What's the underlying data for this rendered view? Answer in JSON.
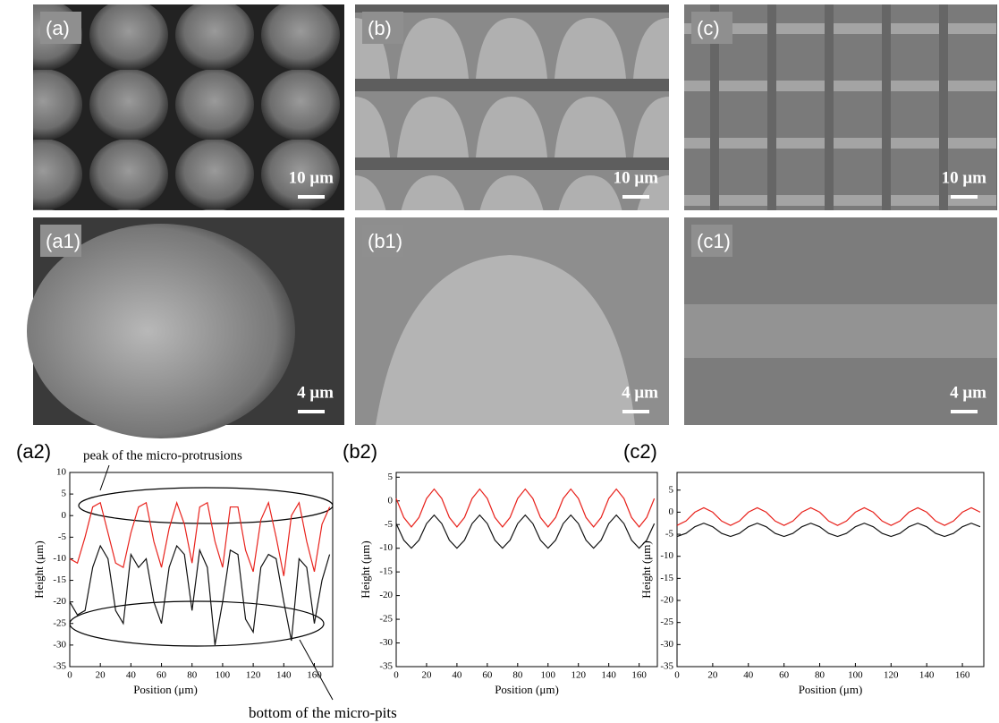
{
  "panels": [
    {
      "label": "(a)",
      "scale": "10 μm"
    },
    {
      "label": "(b)",
      "scale": "10 μm"
    },
    {
      "label": "(c)",
      "scale": "10 μm"
    },
    {
      "label": "(a1)",
      "scale": "4 μm"
    },
    {
      "label": "(b1)",
      "scale": "4 μm"
    },
    {
      "label": "(c1)",
      "scale": "4 μm"
    }
  ],
  "chart_data": [
    {
      "type": "line",
      "label": "(a2)",
      "xlabel": "Position (μm)",
      "ylabel": "Height (μm)",
      "annotations": [
        "peak of the micro-protrusions",
        "bottom of the micro-pits"
      ],
      "xlim": [
        0,
        172
      ],
      "xticks": [
        0,
        20,
        40,
        60,
        80,
        100,
        120,
        140,
        160
      ],
      "ylim": [
        -35,
        10
      ],
      "yticks": [
        -35,
        -30,
        -25,
        -20,
        -15,
        -10,
        -5,
        0,
        5,
        10
      ],
      "x": [
        0,
        5,
        10,
        15,
        20,
        25,
        30,
        35,
        40,
        45,
        50,
        55,
        60,
        65,
        70,
        75,
        80,
        85,
        90,
        95,
        100,
        105,
        110,
        115,
        120,
        125,
        130,
        135,
        140,
        145,
        150,
        155,
        160,
        165,
        170
      ],
      "series": [
        {
          "color": "#e8221c",
          "values": [
            -10,
            -11,
            -5,
            2,
            3,
            -4,
            -11,
            -12,
            -4,
            2,
            3,
            -6,
            -12,
            -3,
            3,
            -2,
            -11,
            2,
            3,
            -6,
            -12,
            2,
            2,
            -8,
            -13,
            -1,
            3,
            -5,
            -14,
            0,
            3,
            -6,
            -13,
            -2,
            2
          ]
        },
        {
          "color": "#111111",
          "values": [
            -20,
            -23,
            -22,
            -12,
            -7,
            -10,
            -22,
            -25,
            -9,
            -12,
            -10,
            -20,
            -25,
            -12,
            -7,
            -9,
            -22,
            -8,
            -12,
            -30,
            -20,
            -8,
            -9,
            -24,
            -27,
            -12,
            -9,
            -10,
            -20,
            -29,
            -10,
            -12,
            -25,
            -15,
            -9
          ]
        }
      ]
    },
    {
      "type": "line",
      "label": "(b2)",
      "xlabel": "Position (μm)",
      "ylabel": "Height (μm)",
      "xlim": [
        0,
        172
      ],
      "xticks": [
        0,
        20,
        40,
        60,
        80,
        100,
        120,
        140,
        160
      ],
      "ylim": [
        -35,
        6
      ],
      "yticks": [
        -35,
        -30,
        -25,
        -20,
        -15,
        -10,
        -5,
        0,
        5
      ],
      "x": [
        0,
        5,
        10,
        15,
        20,
        25,
        30,
        35,
        40,
        45,
        50,
        55,
        60,
        65,
        70,
        75,
        80,
        85,
        90,
        95,
        100,
        105,
        110,
        115,
        120,
        125,
        130,
        135,
        140,
        145,
        150,
        155,
        160,
        165,
        170
      ],
      "series": [
        {
          "color": "#e8221c",
          "values": [
            0.5,
            -3.5,
            -5.5,
            -3.5,
            0.5,
            2.5,
            0.5,
            -3.5,
            -5.5,
            -3.5,
            0.5,
            2.5,
            0.5,
            -3.5,
            -5.5,
            -3.5,
            0.5,
            2.5,
            0.5,
            -3.5,
            -5.5,
            -3.5,
            0.5,
            2.5,
            0.5,
            -3.5,
            -5.5,
            -3.5,
            0.5,
            2.5,
            0.5,
            -3.5,
            -5.5,
            -3.5,
            0.5
          ]
        },
        {
          "color": "#111111",
          "values": [
            -4.8,
            -8.3,
            -10,
            -8.3,
            -4.8,
            -3,
            -4.8,
            -8.3,
            -10,
            -8.3,
            -4.8,
            -3,
            -4.8,
            -8.3,
            -10,
            -8.3,
            -4.8,
            -3,
            -4.8,
            -8.3,
            -10,
            -8.3,
            -4.8,
            -3,
            -4.8,
            -8.3,
            -10,
            -8.3,
            -4.8,
            -3,
            -4.8,
            -8.3,
            -10,
            -8.3,
            -4.8
          ]
        }
      ]
    },
    {
      "type": "line",
      "label": "(c2)",
      "xlabel": "Position (μm)",
      "ylabel": "Height (μm)",
      "xlim": [
        0,
        172
      ],
      "xticks": [
        0,
        20,
        40,
        60,
        80,
        100,
        120,
        140,
        160
      ],
      "ylim": [
        -35,
        9
      ],
      "yticks": [
        -35,
        -30,
        -25,
        -20,
        -15,
        -10,
        -5,
        0,
        5
      ],
      "x": [
        0,
        5,
        10,
        15,
        20,
        25,
        30,
        35,
        40,
        45,
        50,
        55,
        60,
        65,
        70,
        75,
        80,
        85,
        90,
        95,
        100,
        105,
        110,
        115,
        120,
        125,
        130,
        135,
        140,
        145,
        150,
        155,
        160,
        165,
        170
      ],
      "series": [
        {
          "color": "#e8221c",
          "values": [
            -3,
            -2,
            0,
            1,
            0,
            -2,
            -3,
            -2,
            0,
            1,
            0,
            -2,
            -3,
            -2,
            0,
            1,
            0,
            -2,
            -3,
            -2,
            0,
            1,
            0,
            -2,
            -3,
            -2,
            0,
            1,
            0,
            -2,
            -3,
            -2,
            0,
            1,
            0
          ]
        },
        {
          "color": "#111111",
          "values": [
            -5.5,
            -4.8,
            -3.3,
            -2.5,
            -3.3,
            -4.8,
            -5.5,
            -4.8,
            -3.3,
            -2.5,
            -3.3,
            -4.8,
            -5.5,
            -4.8,
            -3.3,
            -2.5,
            -3.3,
            -4.8,
            -5.5,
            -4.8,
            -3.3,
            -2.5,
            -3.3,
            -4.8,
            -5.5,
            -4.8,
            -3.3,
            -2.5,
            -3.3,
            -4.8,
            -5.5,
            -4.8,
            -3.3,
            -2.5,
            -3.3
          ]
        }
      ]
    }
  ]
}
